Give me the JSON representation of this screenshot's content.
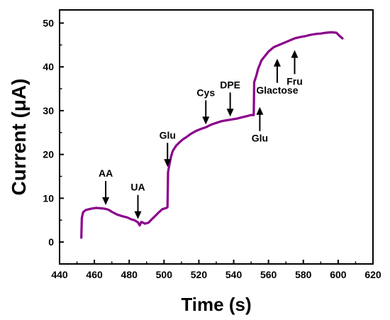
{
  "chart_data": {
    "type": "line",
    "xlabel": "Time (s)",
    "ylabel": "Current (μA)",
    "xlim": [
      440,
      620
    ],
    "ylim": [
      -5,
      53
    ],
    "xticks": [
      440,
      460,
      480,
      500,
      520,
      540,
      560,
      580,
      600,
      620
    ],
    "yticks": [
      0,
      10,
      20,
      30,
      40,
      50
    ],
    "grid": false,
    "line_color": "#8B008B",
    "series": [
      {
        "points": [
          [
            452.5,
            1.0
          ],
          [
            452.8,
            5.5
          ],
          [
            453.5,
            6.8
          ],
          [
            455,
            7.3
          ],
          [
            458,
            7.6
          ],
          [
            461,
            7.8
          ],
          [
            464,
            7.7
          ],
          [
            466,
            7.6
          ],
          [
            468,
            7.4
          ],
          [
            470,
            6.9
          ],
          [
            473,
            6.3
          ],
          [
            476,
            5.9
          ],
          [
            479,
            5.6
          ],
          [
            481,
            5.2
          ],
          [
            483,
            5.0
          ],
          [
            485,
            4.5
          ],
          [
            486,
            3.8
          ],
          [
            487,
            4.6
          ],
          [
            489,
            4.2
          ],
          [
            491,
            4.4
          ],
          [
            493,
            5.2
          ],
          [
            495,
            6.0
          ],
          [
            497,
            6.8
          ],
          [
            499,
            7.5
          ],
          [
            501.5,
            7.8
          ],
          [
            502.0,
            8.0
          ],
          [
            502.3,
            16.0
          ],
          [
            503,
            17.5
          ],
          [
            504,
            19.5
          ],
          [
            505,
            20.8
          ],
          [
            507,
            22.0
          ],
          [
            509,
            22.8
          ],
          [
            511,
            23.5
          ],
          [
            513,
            24.0
          ],
          [
            515,
            24.6
          ],
          [
            518,
            25.3
          ],
          [
            521,
            25.8
          ],
          [
            524,
            26.2
          ],
          [
            527,
            26.8
          ],
          [
            530,
            27.2
          ],
          [
            533,
            27.6
          ],
          [
            536,
            27.8
          ],
          [
            539,
            28.0
          ],
          [
            542,
            28.2
          ],
          [
            545,
            28.5
          ],
          [
            548,
            28.8
          ],
          [
            550,
            29.0
          ],
          [
            551.5,
            29.0
          ],
          [
            551.8,
            36.5
          ],
          [
            553,
            38.0
          ],
          [
            554,
            39.5
          ],
          [
            556,
            41.5
          ],
          [
            558,
            42.5
          ],
          [
            560,
            43.5
          ],
          [
            563,
            44.5
          ],
          [
            566,
            45.0
          ],
          [
            569,
            45.5
          ],
          [
            572,
            46.0
          ],
          [
            575,
            46.5
          ],
          [
            578,
            46.8
          ],
          [
            581,
            47.0
          ],
          [
            584,
            47.3
          ],
          [
            587,
            47.5
          ],
          [
            590,
            47.6
          ],
          [
            593,
            47.8
          ],
          [
            596,
            47.9
          ],
          [
            599,
            47.8
          ],
          [
            601,
            47.0
          ],
          [
            602.5,
            46.5
          ]
        ]
      }
    ],
    "annotations": [
      {
        "label": "AA",
        "x": 466.5,
        "y": 7.8,
        "direction": "down",
        "label_side": "above"
      },
      {
        "label": "UA",
        "x": 485.0,
        "y": 4.6,
        "direction": "down",
        "label_side": "above"
      },
      {
        "label": "Glu",
        "x": 502.0,
        "y": 16.5,
        "direction": "down",
        "label_side": "above"
      },
      {
        "label": "Cys",
        "x": 524.0,
        "y": 26.2,
        "direction": "down",
        "label_side": "above"
      },
      {
        "label": "DPE",
        "x": 538.0,
        "y": 28.0,
        "direction": "down",
        "label_side": "above"
      },
      {
        "label": "Glu",
        "x": 555.0,
        "y": 31.5,
        "direction": "up",
        "label_side": "below"
      },
      {
        "label": "Glactose",
        "x": 565.0,
        "y": 42.5,
        "direction": "up",
        "label_side": "below"
      },
      {
        "label": "Fru",
        "x": 575.0,
        "y": 44.5,
        "direction": "up",
        "label_side": "below"
      }
    ]
  }
}
